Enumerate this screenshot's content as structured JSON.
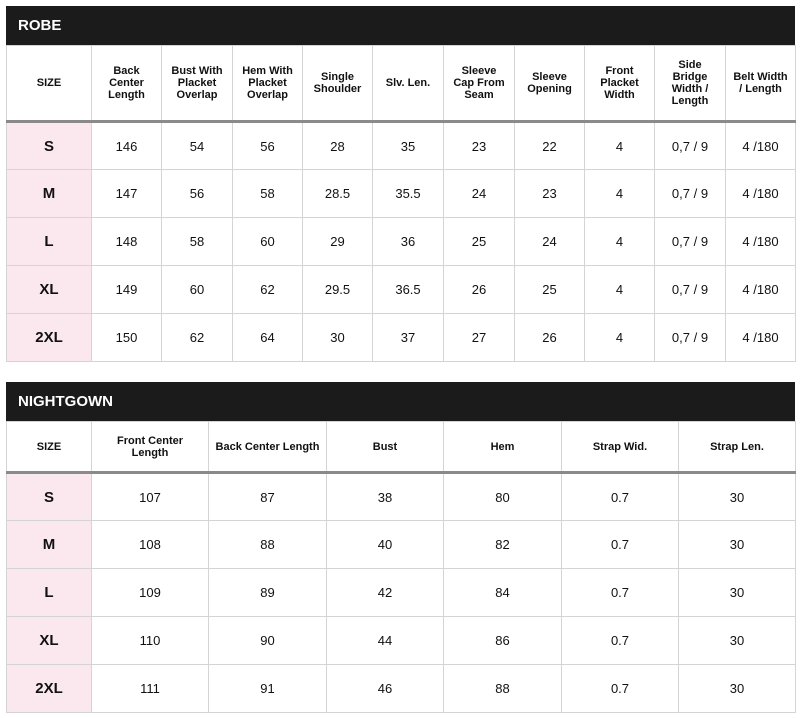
{
  "tables": [
    {
      "title": "ROBE",
      "columns": [
        [
          "SIZE"
        ],
        [
          "Back",
          "Center",
          "Length"
        ],
        [
          "Bust With",
          "Placket",
          "Overlap"
        ],
        [
          "Hem With",
          "Placket",
          "Overlap"
        ],
        [
          "Single",
          "Shoulder"
        ],
        [
          "Slv. Len."
        ],
        [
          "Sleeve",
          "Cap From",
          "Seam"
        ],
        [
          "Sleeve",
          "Opening"
        ],
        [
          "Front",
          "Placket",
          "Width"
        ],
        [
          "Side",
          "Bridge",
          "Width /",
          "Length"
        ],
        [
          "Belt Width",
          "/ Length"
        ]
      ],
      "rows": [
        [
          "S",
          "146",
          "54",
          "56",
          "28",
          "35",
          "23",
          "22",
          "4",
          "0,7 / 9",
          "4 /180"
        ],
        [
          "M",
          "147",
          "56",
          "58",
          "28.5",
          "35.5",
          "24",
          "23",
          "4",
          "0,7 / 9",
          "4 /180"
        ],
        [
          "L",
          "148",
          "58",
          "60",
          "29",
          "36",
          "25",
          "24",
          "4",
          "0,7 / 9",
          "4 /180"
        ],
        [
          "XL",
          "149",
          "60",
          "62",
          "29.5",
          "36.5",
          "26",
          "25",
          "4",
          "0,7 / 9",
          "4 /180"
        ],
        [
          "2XL",
          "150",
          "62",
          "64",
          "30",
          "37",
          "27",
          "26",
          "4",
          "0,7 / 9",
          "4 /180"
        ]
      ]
    },
    {
      "title": "NIGHTGOWN",
      "columns": [
        [
          "SIZE"
        ],
        [
          "Front Center",
          "Length"
        ],
        [
          "Back Center Length"
        ],
        [
          "Bust"
        ],
        [
          "Hem"
        ],
        [
          "Strap Wid."
        ],
        [
          "Strap Len."
        ]
      ],
      "rows": [
        [
          "S",
          "107",
          "87",
          "38",
          "80",
          "0.7",
          "30"
        ],
        [
          "M",
          "108",
          "88",
          "40",
          "82",
          "0.7",
          "30"
        ],
        [
          "L",
          "109",
          "89",
          "42",
          "84",
          "0.7",
          "30"
        ],
        [
          "XL",
          "110",
          "90",
          "44",
          "86",
          "0.7",
          "30"
        ],
        [
          "2XL",
          "111",
          "91",
          "46",
          "88",
          "0.7",
          "30"
        ]
      ]
    }
  ]
}
